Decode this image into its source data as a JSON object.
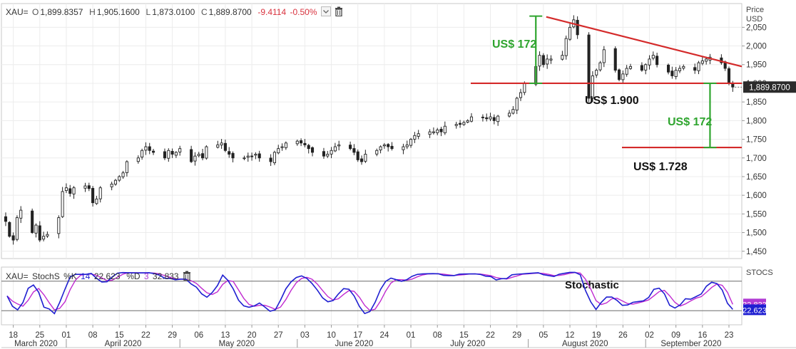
{
  "header": {
    "symbol": "XAU=",
    "open_label": "O",
    "open": "1,899.8357",
    "high_label": "H",
    "high": "1,905.1600",
    "low_label": "L",
    "low": "1,873.0100",
    "close_label": "C",
    "close": "1,889.8700",
    "change": "-9.4114",
    "change_pct": "-0.50%"
  },
  "stoch_header": {
    "symbol": "XAU=",
    "name": "StochS",
    "k_label": "%K",
    "k_period": "14",
    "k_value": "22.623",
    "d_label": "%D",
    "d_period": "3",
    "d_value": "32.833"
  },
  "colors": {
    "resistance_line": "#d42a2a",
    "annotation_green": "#2fa52f",
    "k_line": "#1f1fd1",
    "d_line": "#c02ad0",
    "k_badge": "#1f1fd1",
    "d_badge": "#b13bd3",
    "last_price_badge": "#2b2b2b"
  },
  "chart_data": [
    {
      "type": "candlestick",
      "ylabel": "Price\nUSD",
      "ylim": [
        1440,
        2085
      ],
      "yticks": [
        "2,050",
        "2,000",
        "1,950",
        "1,900",
        "1,850",
        "1,800",
        "1,750",
        "1,700",
        "1,650",
        "1,600",
        "1,550",
        "1,500",
        "1,450"
      ],
      "grid": true,
      "last_price_label": "1,889.8700",
      "x_day_ticks": [
        "18",
        "25",
        "01",
        "08",
        "15",
        "22",
        "29",
        "06",
        "13",
        "20",
        "27",
        "03",
        "10",
        "17",
        "24",
        "01",
        "08",
        "15",
        "22",
        "29",
        "05",
        "12",
        "19",
        "26",
        "02",
        "09",
        "16",
        "23"
      ],
      "x_month_labels": [
        "March 2020",
        "April 2020",
        "May 2020",
        "June 2020",
        "July 2020",
        "August 2020",
        "September 2020"
      ],
      "start_date": "2020-03-16",
      "close_series": [
        1530,
        1490,
        1480,
        1540,
        1560,
        1500,
        1520,
        1480,
        1490,
        1495,
        1540,
        1610,
        1620,
        1605,
        1620,
        1625,
        1618,
        1580,
        1590,
        1620,
        1630,
        1640,
        1650,
        1660,
        1690,
        1700,
        1720,
        1730,
        1720,
        1715,
        1700,
        1720,
        1710,
        1715,
        1725,
        1690,
        1705,
        1710,
        1700,
        1730,
        1735,
        1740,
        1720,
        1710,
        1700,
        1700,
        1705,
        1705,
        1710,
        1700,
        1690,
        1715,
        1725,
        1730,
        1740,
        1745,
        1740,
        1735,
        1725,
        1715,
        1705,
        1710,
        1720,
        1730,
        1735,
        1725,
        1715,
        1695,
        1690,
        1710,
        1720,
        1730,
        1735,
        1730,
        1725,
        1730,
        1735,
        1750,
        1760,
        1765,
        1770,
        1770,
        1775,
        1770,
        1785,
        1790,
        1790,
        1795,
        1800,
        1810,
        1808,
        1805,
        1810,
        1800,
        1812,
        1820,
        1830,
        1860,
        1875,
        1900,
        1945,
        1975,
        1950,
        1965,
        1965,
        1975,
        2020,
        2050,
        2070,
        2030,
        1860,
        1920,
        1935,
        1955,
        1990,
        1935,
        1910,
        1925,
        1940,
        1945,
        1935,
        1950,
        1965,
        1975,
        1950,
        1930,
        1920,
        1935,
        1940,
        1945,
        1935,
        1955,
        1960,
        1965,
        1970,
        1955,
        1940,
        1900,
        1890
      ],
      "annotations": [
        {
          "text": "US$ 172",
          "color": "green"
        },
        {
          "text": "US$ 1.900",
          "color": "black"
        },
        {
          "text": "US$ 172",
          "color": "green"
        },
        {
          "text": "US$ 1.728",
          "color": "black"
        }
      ],
      "levels": {
        "support": 1900,
        "target": 1728,
        "resistance_from": 2078,
        "resistance_to": 1945,
        "measure_low": 1900,
        "measure_high": 2080
      }
    },
    {
      "type": "line",
      "title": "Stochastic",
      "ylabel": "STOCS",
      "ylim": [
        0,
        100
      ],
      "series": [
        {
          "name": "%K"
        },
        {
          "name": "%D"
        }
      ],
      "k_last": "22.623",
      "d_last": "32.833"
    }
  ]
}
